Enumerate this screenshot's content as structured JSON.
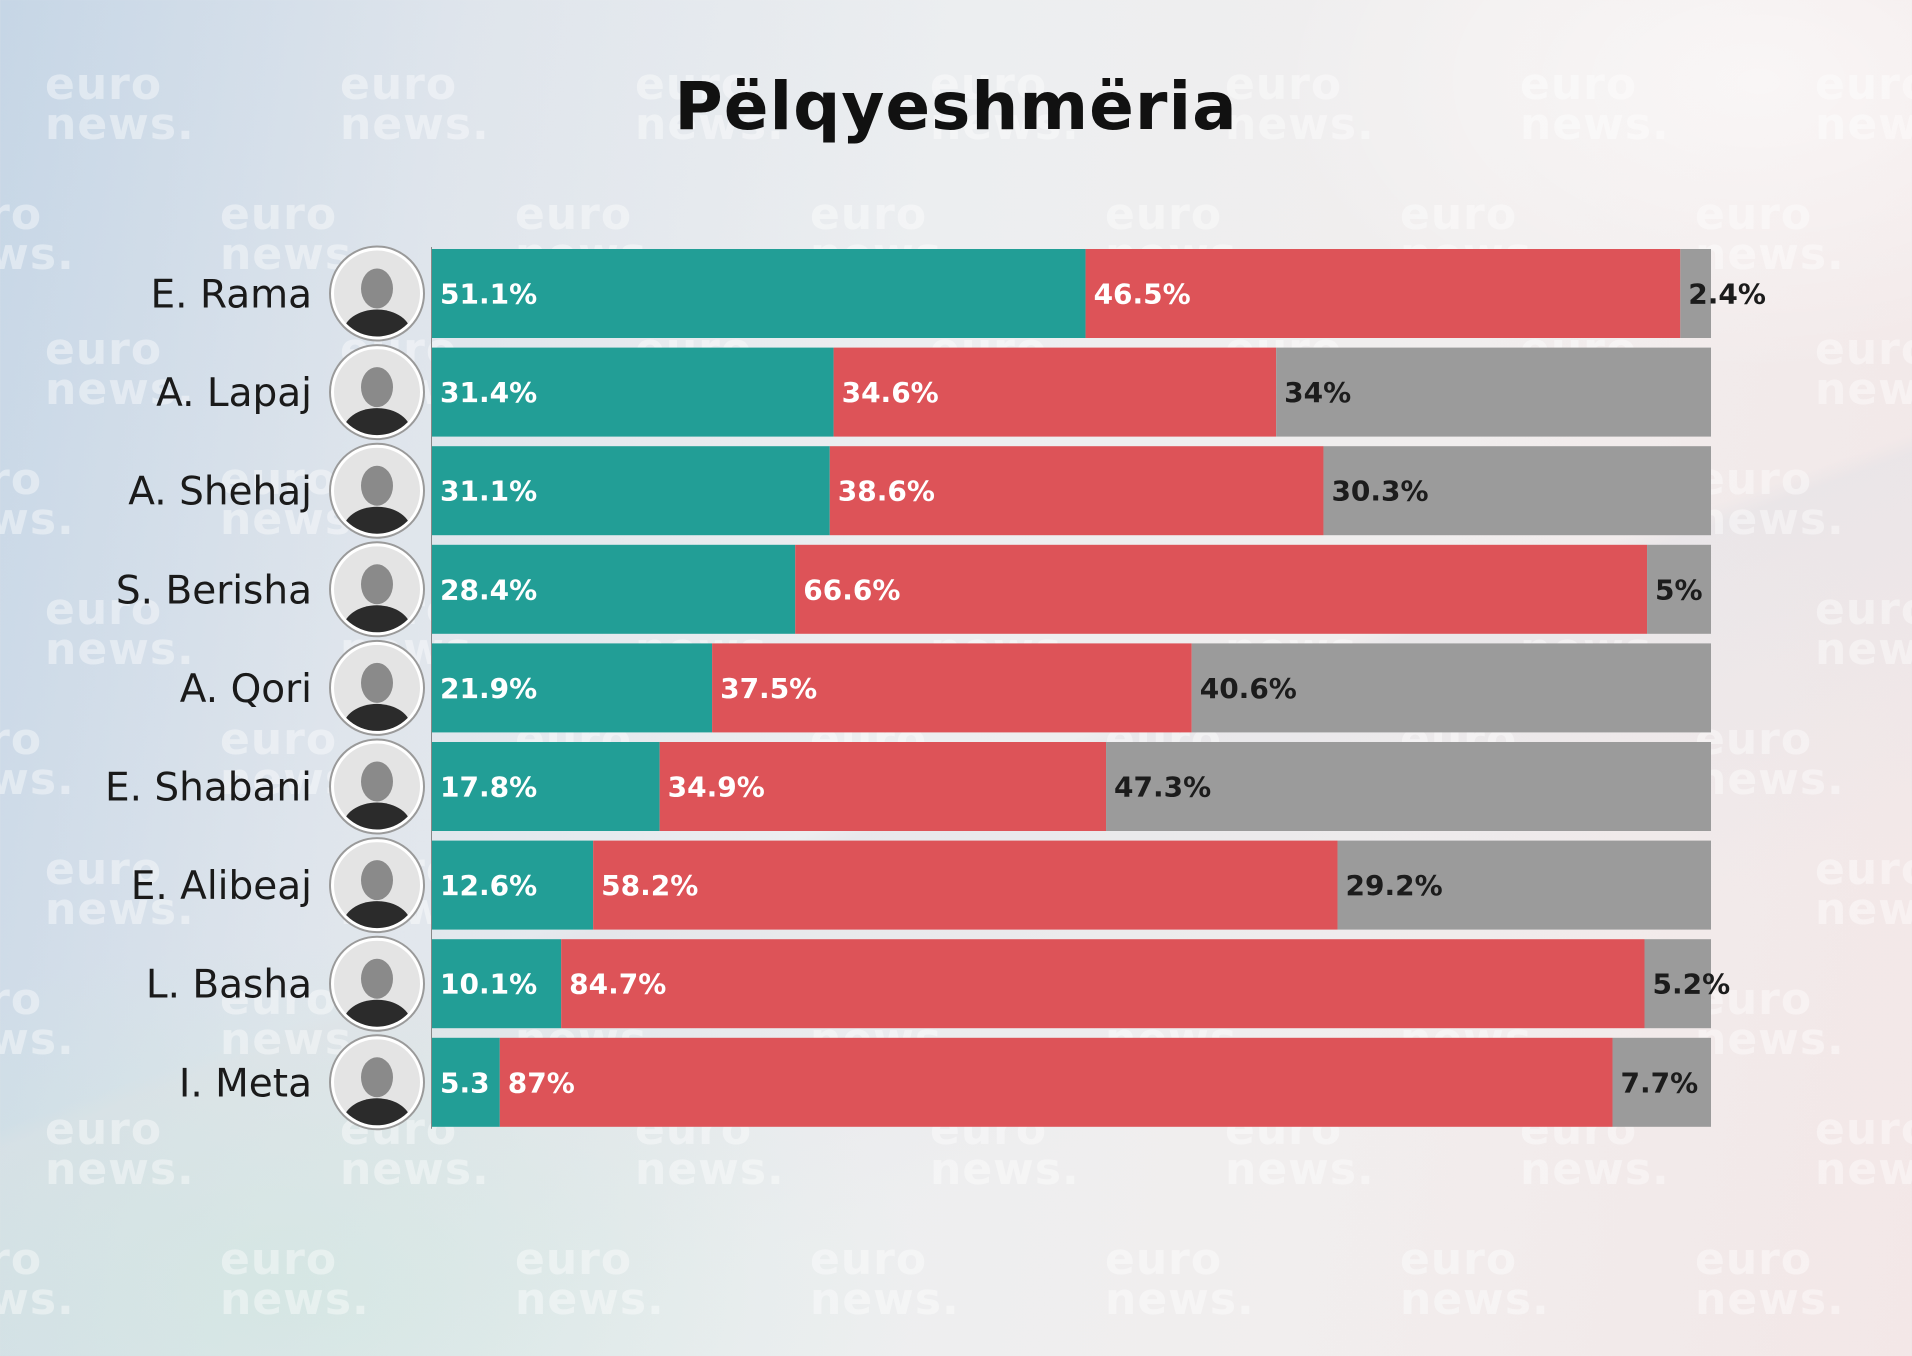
{
  "chart_data": {
    "type": "bar",
    "stacked": true,
    "orientation": "horizontal",
    "title": "Pëlqyeshmëria",
    "categories": [
      "E. Rama",
      "A. Lapaj",
      "A. Shehaj",
      "S. Berisha",
      "A. Qori",
      "E. Shabani",
      "E. Alibeaj",
      "L. Basha",
      "I. Meta"
    ],
    "series": [
      {
        "color": "#229e96",
        "values": [
          51.1,
          31.4,
          31.1,
          28.4,
          21.9,
          17.8,
          12.6,
          10.1,
          5.3
        ],
        "labels": [
          "51.1%",
          "31.4%",
          "31.1%",
          "28.4%",
          "21.9%",
          "17.8%",
          "12.6%",
          "10.1%",
          "5.3"
        ]
      },
      {
        "color": "#dd5358",
        "values": [
          46.5,
          34.6,
          38.6,
          66.6,
          37.5,
          34.9,
          58.2,
          84.7,
          87
        ],
        "labels": [
          "46.5%",
          "34.6%",
          "38.6%",
          "66.6%",
          "37.5%",
          "34.9%",
          "58.2%",
          "84.7%",
          "87%"
        ]
      },
      {
        "color": "#9b9b9b",
        "values": [
          2.4,
          34,
          30.3,
          5,
          40.6,
          47.3,
          29.2,
          5.2,
          7.7
        ],
        "labels": [
          "2.4%",
          "34%",
          "30.3%",
          "5%",
          "40.6%",
          "47.3%",
          "29.2%",
          "5.2%",
          "7.7%"
        ]
      }
    ],
    "xlim": [
      0,
      100
    ],
    "legend": "none",
    "grid": false
  },
  "watermark_text": [
    "euro",
    "news."
  ]
}
